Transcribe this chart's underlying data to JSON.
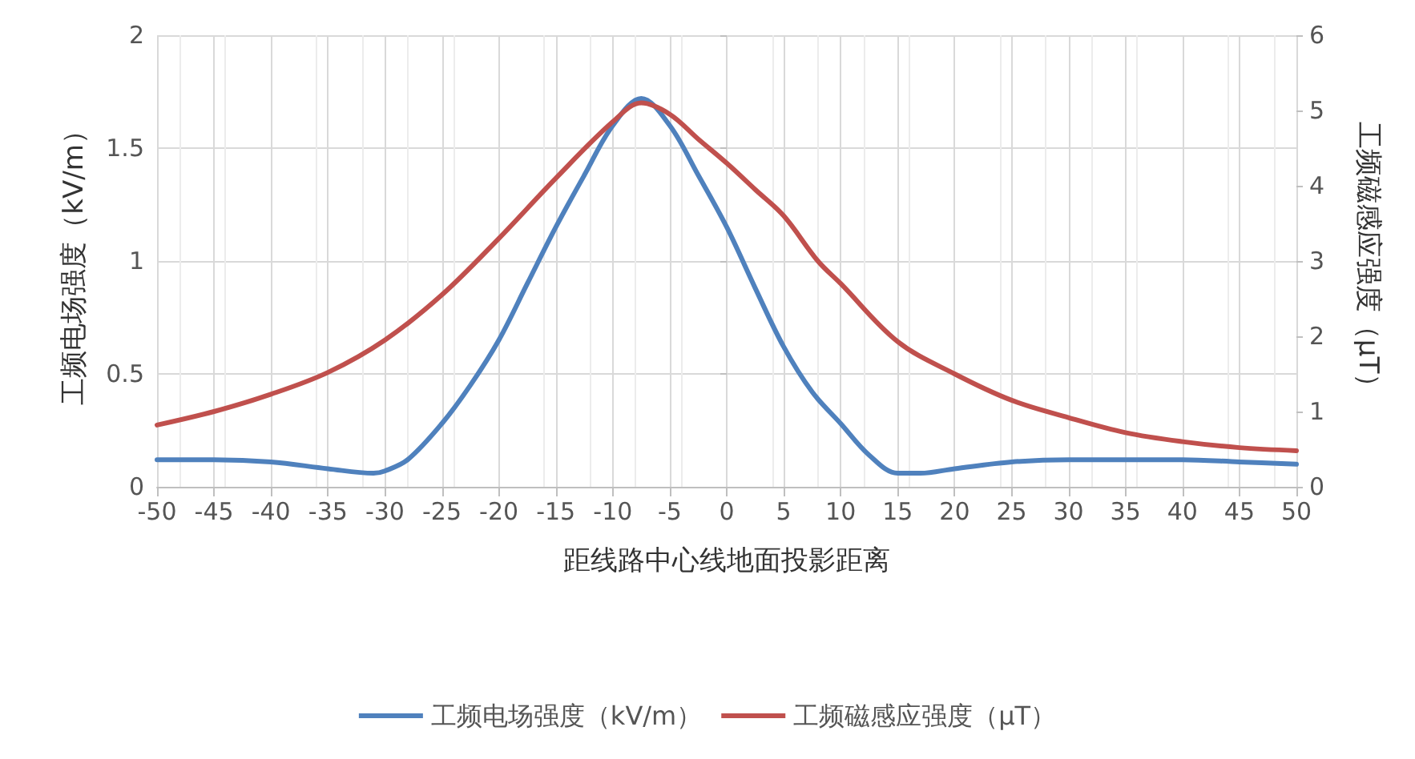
{
  "chart_data": {
    "type": "line",
    "xlabel": "距线路中心线地面投影距离",
    "ylabel": "工频电场强度（kV/m）",
    "y2label": "工频磁感应强度（μT）",
    "xlim": [
      -50,
      50
    ],
    "xticks": [
      -50,
      -45,
      -40,
      -35,
      -30,
      -25,
      -20,
      -15,
      -10,
      -5,
      0,
      5,
      10,
      15,
      20,
      25,
      30,
      35,
      40,
      45,
      50
    ],
    "ylim": [
      0,
      2
    ],
    "yticks": [
      0,
      0.5,
      1,
      1.5,
      2
    ],
    "y2lim": [
      0,
      6
    ],
    "y2ticks": [
      0,
      1,
      2,
      3,
      4,
      5,
      6
    ],
    "grid": true,
    "legend": "bottom",
    "marker": "none",
    "line_style": "solid",
    "series": [
      {
        "name": "工频电场强度（kV/m）",
        "color": "#4f81bd",
        "x": [
          -50,
          -45,
          -40,
          -35,
          -31,
          -30,
          -28,
          -25,
          -22.5,
          -20,
          -17.5,
          -15,
          -12.5,
          -10,
          -7.5,
          -5,
          -2.5,
          0,
          2.5,
          5,
          7.5,
          10,
          12.5,
          15,
          17,
          20,
          25,
          30,
          35,
          40,
          45,
          50
        ],
        "values": [
          0.12,
          0.12,
          0.11,
          0.08,
          0.06,
          0.07,
          0.12,
          0.28,
          0.45,
          0.65,
          0.9,
          1.15,
          1.38,
          1.6,
          1.72,
          1.6,
          1.38,
          1.15,
          0.88,
          0.62,
          0.42,
          0.28,
          0.14,
          0.06,
          0.06,
          0.08,
          0.11,
          0.12,
          0.12,
          0.12,
          0.11,
          0.1
        ]
      },
      {
        "name": "工频磁感应强度（μT）",
        "color": "#c0504d",
        "axis": "y2",
        "x": [
          -50,
          -45,
          -40,
          -35,
          -30,
          -25,
          -20,
          -15,
          -10,
          -7.5,
          -5,
          -2.5,
          0,
          2.5,
          5,
          8,
          10,
          15,
          20,
          25,
          30,
          35,
          40,
          45,
          50
        ],
        "values": [
          0.82,
          1.0,
          1.23,
          1.52,
          1.95,
          2.55,
          3.3,
          4.1,
          4.85,
          5.1,
          4.95,
          4.62,
          4.3,
          3.95,
          3.6,
          3.0,
          2.7,
          1.93,
          1.5,
          1.15,
          0.92,
          0.72,
          0.6,
          0.52,
          0.48
        ]
      }
    ]
  }
}
